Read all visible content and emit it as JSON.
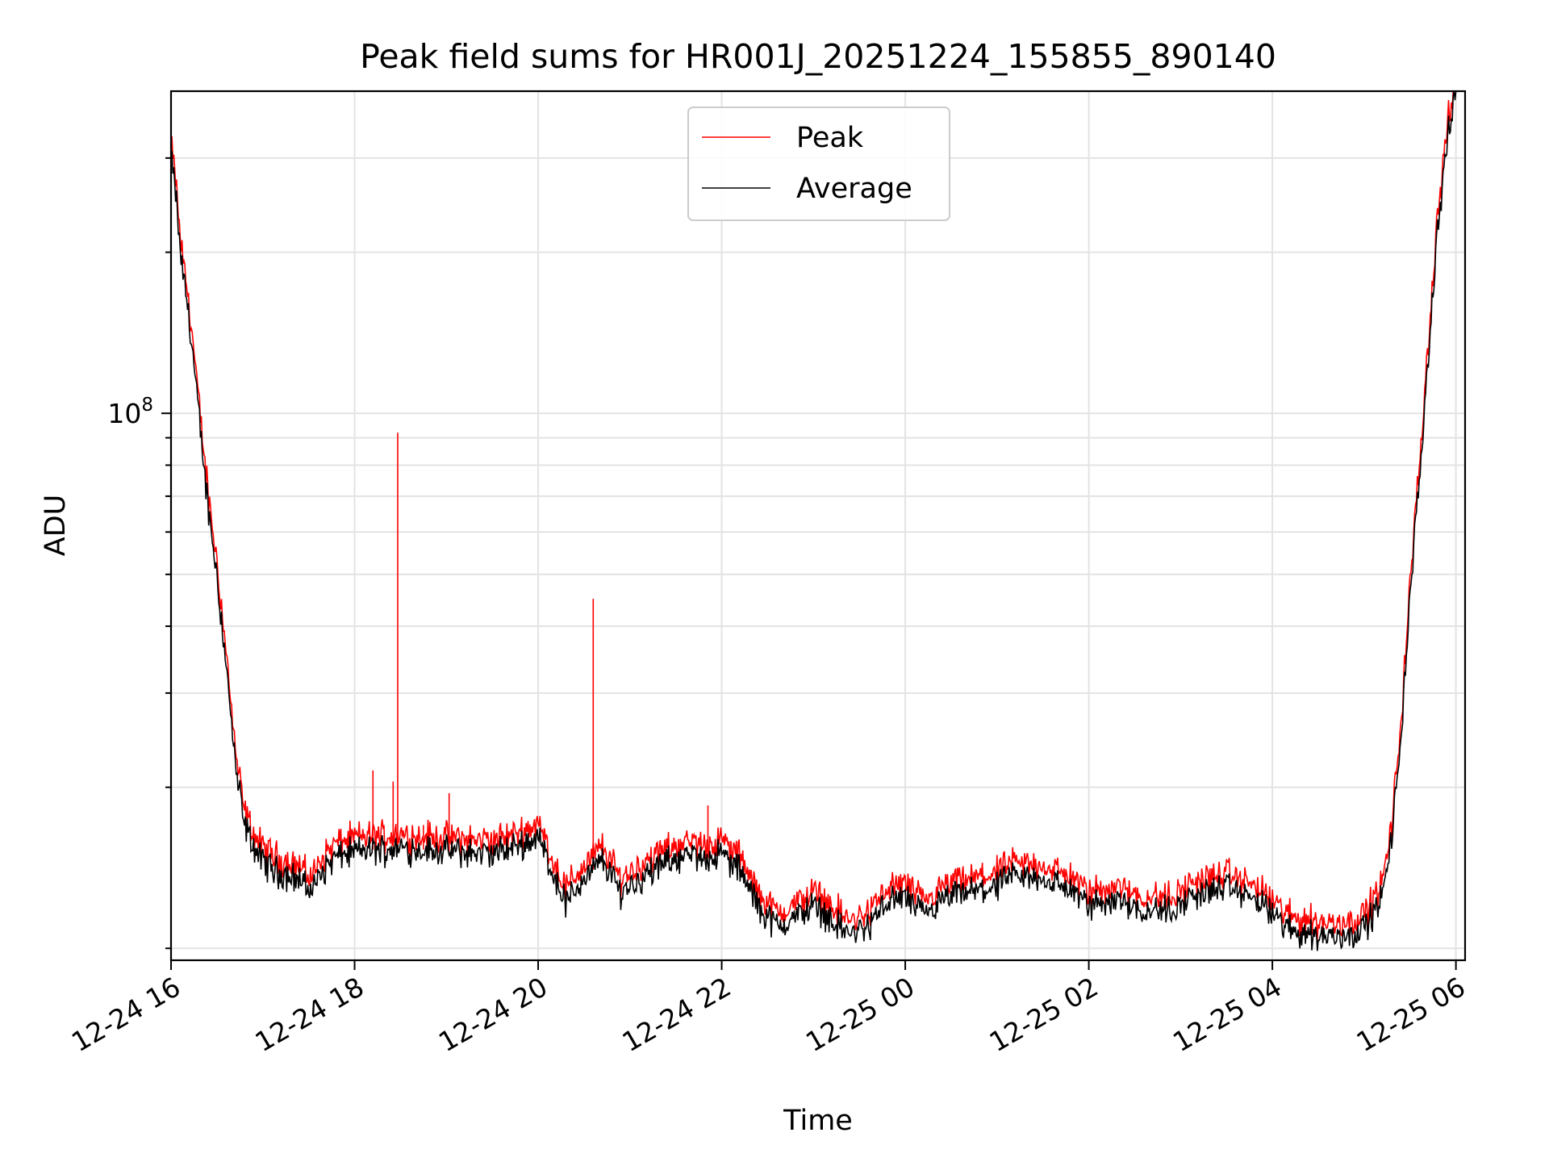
{
  "chart_data": {
    "type": "line",
    "title": "Peak field sums for HR001J_20251224_155855_890140",
    "xlabel": "Time",
    "ylabel": "ADU",
    "y_scale": "log",
    "ylim": [
      9500000,
      400000000
    ],
    "y_major_tick_labels": [
      {
        "value": 100000000,
        "base": "10",
        "exponent": "8"
      }
    ],
    "y_minor_ticks": [
      10000000,
      20000000,
      30000000,
      40000000,
      50000000,
      60000000,
      70000000,
      80000000,
      90000000,
      200000000,
      300000000
    ],
    "x_unit": "hours since 12-24 16:00",
    "xlim": [
      0,
      14.1
    ],
    "x_tick_labels": [
      {
        "x": 0,
        "label": "12-24 16"
      },
      {
        "x": 2,
        "label": "12-24 18"
      },
      {
        "x": 4,
        "label": "12-24 20"
      },
      {
        "x": 6,
        "label": "12-24 22"
      },
      {
        "x": 8,
        "label": "12-25 00"
      },
      {
        "x": 10,
        "label": "12-25 02"
      },
      {
        "x": 12,
        "label": "12-25 04"
      },
      {
        "x": 14,
        "label": "12-25 06"
      }
    ],
    "grid": true,
    "legend": {
      "location": "upper-center",
      "entries": [
        {
          "label": "Peak",
          "color": "#ff0000"
        },
        {
          "label": "Average",
          "color": "#000000"
        }
      ]
    },
    "series": [
      {
        "name": "Average",
        "color": "#000000",
        "values_description": "baseline ADU profile in millions",
        "x": [
          0.0,
          0.05,
          0.1,
          0.2,
          0.3,
          0.4,
          0.5,
          0.6,
          0.7,
          0.8,
          0.9,
          1.0,
          1.2,
          1.4,
          1.5,
          1.6,
          1.7,
          1.8,
          2.0,
          2.5,
          3.0,
          3.5,
          3.8,
          4.0,
          4.15,
          4.3,
          4.5,
          4.7,
          4.9,
          5.2,
          5.5,
          5.8,
          6.0,
          6.2,
          6.4,
          6.6,
          6.8,
          7.0,
          7.2,
          7.4,
          7.6,
          7.8,
          8.0,
          8.2,
          8.5,
          8.8,
          9.0,
          9.2,
          9.5,
          9.8,
          10.0,
          10.3,
          10.6,
          10.9,
          11.2,
          11.5,
          11.8,
          12.0,
          12.2,
          12.4,
          12.6,
          12.8,
          13.0,
          13.2,
          13.3,
          13.4,
          13.5,
          13.6,
          13.7,
          13.8,
          13.9,
          14.0
        ],
        "values": [
          300,
          260,
          200,
          150,
          100,
          68,
          50,
          34,
          22,
          17,
          15.5,
          14.5,
          13.8,
          13.5,
          12.8,
          13.4,
          14.3,
          14.8,
          15.2,
          15.4,
          15.2,
          15.0,
          15.6,
          16.2,
          14.0,
          12.2,
          13.5,
          14.6,
          12.8,
          13.8,
          14.8,
          14.8,
          15.0,
          14.0,
          12.0,
          11.0,
          11.4,
          12.1,
          11.3,
          10.6,
          11.0,
          12.2,
          12.5,
          11.5,
          12.5,
          12.8,
          13.1,
          13.6,
          13.5,
          12.9,
          12.0,
          12.4,
          11.8,
          11.8,
          12.7,
          13.0,
          12.4,
          11.6,
          10.8,
          10.7,
          10.5,
          10.6,
          10.9,
          12.5,
          16,
          25,
          45,
          75,
          130,
          220,
          320,
          400
        ]
      },
      {
        "name": "Peak",
        "color": "#ff0000",
        "values_description": "slightly above average, with narrow spikes",
        "offset_ratio": 1.045,
        "spikes": [
          {
            "x": 2.2,
            "value": 21.5
          },
          {
            "x": 2.42,
            "value": 20.5
          },
          {
            "x": 2.47,
            "value": 92
          },
          {
            "x": 2.75,
            "value": 17.0
          },
          {
            "x": 3.03,
            "value": 19.5
          },
          {
            "x": 4.6,
            "value": 45
          },
          {
            "x": 5.85,
            "value": 18.5
          }
        ]
      }
    ]
  }
}
